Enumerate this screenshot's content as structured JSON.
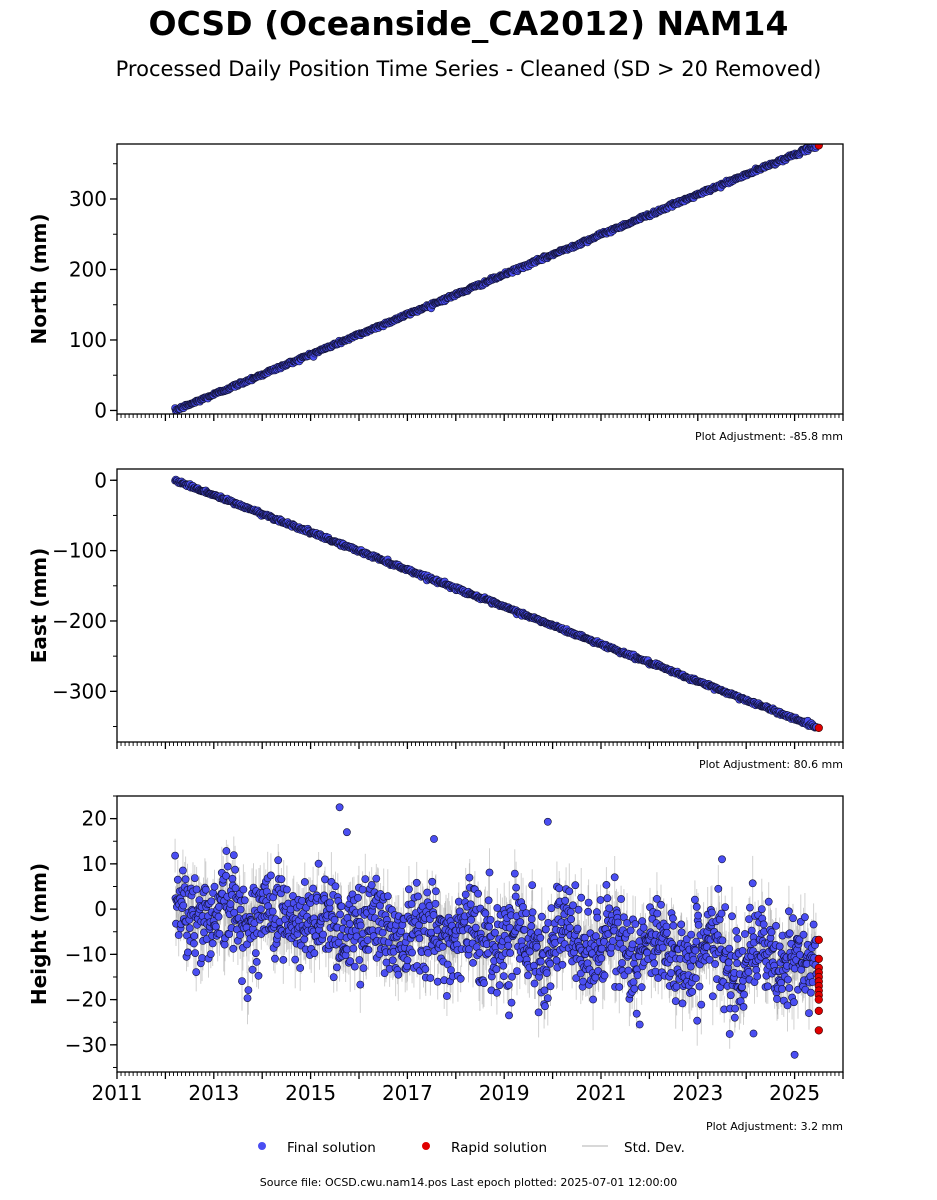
{
  "header": {
    "title": "OCSD (Oceanside_CA2012) NAM14",
    "subtitle": "Processed Daily Position Time Series - Cleaned (SD > 20 Removed)"
  },
  "footer": {
    "text": "Source file: OCSD.cwu.nam14.pos  Last epoch plotted: 2025-07-01 12:00:00"
  },
  "legend": {
    "placement": "bottom-center",
    "items": [
      {
        "label": "Final solution",
        "color": "#4a4ef2",
        "marker": "dot"
      },
      {
        "label": "Rapid solution",
        "color": "#e00000",
        "marker": "dot"
      },
      {
        "label": "Std. Dev.",
        "color": "#cccccc",
        "marker": "line"
      }
    ]
  },
  "chart_data": [
    {
      "type": "scatter",
      "ylabel": "North (mm)",
      "xlim": [
        2011,
        2026
      ],
      "ylim": [
        -5,
        378
      ],
      "yticks": [
        0,
        100,
        200,
        300
      ],
      "xtick_labels_shown": false,
      "adjustment": "Plot Adjustment: -85.8 mm",
      "trend": {
        "start_year": 2012.2,
        "start_value": 0,
        "end_year": 2025.5,
        "end_value": 377
      },
      "final_color": "#4a4ef2",
      "rapid_color": "#e00000",
      "std_color": "#999999",
      "series": [
        {
          "name": "Final solution",
          "x": [
            2012.2,
            2013.0,
            2014.0,
            2015.0,
            2016.0,
            2017.0,
            2018.0,
            2019.0,
            2020.0,
            2021.0,
            2022.0,
            2023.0,
            2024.0,
            2025.0,
            2025.45
          ],
          "y": [
            0,
            23,
            50,
            80,
            106,
            133,
            158,
            188,
            215,
            246,
            273,
            300,
            328,
            358,
            372
          ]
        },
        {
          "name": "Rapid solution",
          "x": [
            2025.5
          ],
          "y": [
            376
          ]
        }
      ]
    },
    {
      "type": "scatter",
      "ylabel": "East (mm)",
      "xlim": [
        2011,
        2026
      ],
      "ylim": [
        -372,
        16
      ],
      "yticks": [
        0,
        -100,
        -200,
        -300
      ],
      "xtick_labels_shown": false,
      "adjustment": "Plot Adjustment: 80.6 mm",
      "trend": {
        "start_year": 2012.2,
        "start_value": 0,
        "end_year": 2025.5,
        "end_value": -352
      },
      "final_color": "#4a4ef2",
      "rapid_color": "#e00000",
      "std_color": "#999999",
      "series": [
        {
          "name": "Final solution",
          "x": [
            2012.2,
            2013.0,
            2014.0,
            2015.0,
            2016.0,
            2017.0,
            2018.0,
            2019.0,
            2020.0,
            2021.0,
            2022.0,
            2023.0,
            2024.0,
            2025.0,
            2025.45
          ],
          "y": [
            0,
            -22,
            -48,
            -75,
            -101,
            -128,
            -153,
            -180,
            -207,
            -233,
            -258,
            -285,
            -313,
            -339,
            -349
          ]
        },
        {
          "name": "Rapid solution",
          "x": [
            2025.5
          ],
          "y": [
            -352
          ]
        }
      ]
    },
    {
      "type": "scatter",
      "ylabel": "Height (mm)",
      "xlim": [
        2011,
        2026
      ],
      "ylim": [
        -36,
        25
      ],
      "yticks": [
        20,
        10,
        0,
        -10,
        -20,
        -30
      ],
      "xticks": [
        2011,
        2013,
        2015,
        2017,
        2019,
        2021,
        2023,
        2025
      ],
      "xtick_labels_shown": true,
      "adjustment": "Plot Adjustment: 3.2 mm",
      "scatter_band": {
        "start_year": 2012.2,
        "end_year": 2025.45,
        "start_mean": 0,
        "end_mean": -12,
        "spread": 6,
        "std_dev_typical": 4
      },
      "outliers": {
        "x": [
          2015.6,
          2015.75,
          2017.55,
          2019.9,
          2023.5,
          2024.15,
          2025.0,
          2019.1,
          2021.8
        ],
        "y": [
          22.5,
          17,
          15.5,
          19.3,
          11,
          -27.5,
          -32.2,
          -23.5,
          -25.5
        ]
      },
      "final_color": "#4a4ef2",
      "rapid_color": "#e00000",
      "std_color": "#999999",
      "series": [
        {
          "name": "Final solution",
          "x": [
            2012.2,
            2013.0,
            2014.0,
            2015.0,
            2016.0,
            2017.0,
            2018.0,
            2019.0,
            2020.0,
            2021.0,
            2022.0,
            2023.0,
            2024.0,
            2025.0
          ],
          "y": [
            0,
            1,
            0,
            1,
            0,
            -2,
            -2,
            -7,
            -6,
            -6,
            -7,
            -8,
            -9,
            -13
          ]
        },
        {
          "name": "Rapid solution",
          "x": [
            2025.5,
            2025.5,
            2025.5,
            2025.5,
            2025.5,
            2025.5,
            2025.5,
            2025.5,
            2025.5,
            2025.5,
            2025.5,
            2025.5
          ],
          "y": [
            -6.8,
            -11,
            -13,
            -14,
            -15,
            -16,
            -17,
            -18,
            -19,
            -20,
            -22.5,
            -26.8
          ]
        }
      ]
    }
  ]
}
